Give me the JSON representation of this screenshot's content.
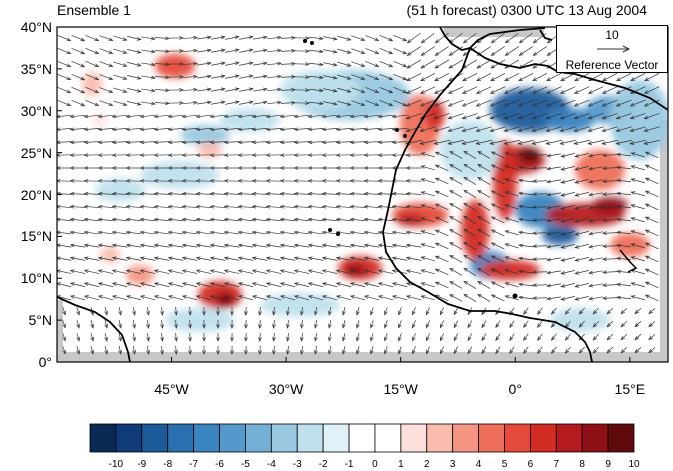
{
  "header": {
    "left_title": "Ensemble 1",
    "right_title": "(51 h forecast) 0300 UTC 13 Aug 2004"
  },
  "map": {
    "lat_labels": [
      "40°N",
      "35°N",
      "30°N",
      "25°N",
      "20°N",
      "15°N",
      "10°N",
      "5°N",
      "0°"
    ],
    "lon_labels": [
      "45°W",
      "30°W",
      "15°W",
      "0°",
      "15°E"
    ],
    "lon_range": [
      -60,
      20
    ],
    "lat_range": [
      0,
      40
    ]
  },
  "reference_vector": {
    "value": "10",
    "label": "Reference Vector"
  },
  "colorbar": {
    "labels": [
      "-10",
      "-9",
      "-8",
      "-7",
      "-6",
      "-5",
      "-4",
      "-3",
      "-2",
      "-1",
      "0",
      "1",
      "2",
      "3",
      "4",
      "5",
      "6",
      "7",
      "8",
      "9",
      "10"
    ],
    "colors": [
      "#0a2a55",
      "#0f3b78",
      "#1c5b9a",
      "#2a6fb0",
      "#3a84c0",
      "#5599cc",
      "#74b0d6",
      "#98c8e0",
      "#bfe0ec",
      "#e0f2f7",
      "#ffffff",
      "#ffffff",
      "#fde0dc",
      "#f9bcae",
      "#f49683",
      "#ee6f5a",
      "#e54b3a",
      "#d22c24",
      "#b51a1e",
      "#8e1016",
      "#600a0c"
    ]
  },
  "colors": {
    "land_outline": "#000000",
    "vector": "#333333",
    "missing": "#c8c8c8"
  }
}
